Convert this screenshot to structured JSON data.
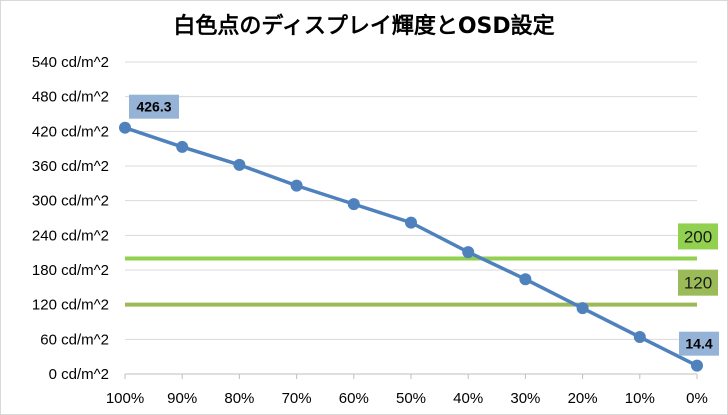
{
  "chart_data": {
    "type": "line",
    "title": "白色点のディスプレイ輝度とOSD設定",
    "xlabel": "",
    "ylabel": "",
    "categories": [
      "100%",
      "90%",
      "80%",
      "70%",
      "60%",
      "50%",
      "40%",
      "30%",
      "20%",
      "10%",
      "0%"
    ],
    "series": [
      {
        "values": [
          426.3,
          393,
          362,
          326,
          294,
          262,
          211,
          164,
          114,
          64,
          14.4
        ],
        "color": "#4f81bd"
      }
    ],
    "yticks": [
      0,
      60,
      120,
      180,
      240,
      300,
      360,
      420,
      480,
      540
    ],
    "ytick_labels": [
      "0 cd/m^2",
      "60 cd/m^2",
      "120 cd/m^2",
      "180 cd/m^2",
      "240 cd/m^2",
      "300 cd/m^2",
      "360 cd/m^2",
      "420 cd/m^2",
      "480 cd/m^2",
      "540 cd/m^2"
    ],
    "ylim": [
      0,
      540
    ],
    "grid": "horizontal",
    "legend": "none",
    "data_labels": [
      {
        "index": 0,
        "text": "426.3"
      },
      {
        "index": 10,
        "text": "14.4"
      }
    ],
    "reference_lines": [
      {
        "value": 200,
        "label": "200",
        "color": "#92d050"
      },
      {
        "value": 120,
        "label": "120",
        "color": "#9bbb59"
      }
    ],
    "label_box_color": "#95b3d7"
  }
}
